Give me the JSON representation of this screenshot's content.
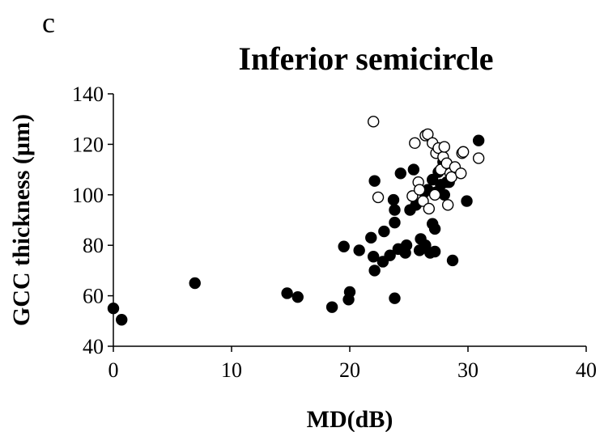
{
  "panel_label": "c",
  "chart_data": {
    "type": "scatter",
    "title": "Inferior semicircle",
    "xlabel": "MD(dB)",
    "ylabel": "GCC thickness (µm)",
    "xlim": [
      0,
      40
    ],
    "ylim": [
      40,
      140
    ],
    "x_ticks": [
      "0",
      "10",
      "20",
      "30",
      "40"
    ],
    "y_ticks": [
      "40",
      "60",
      "80",
      "100",
      "120",
      "140"
    ],
    "grid": false,
    "legend": "none",
    "series": [
      {
        "marker": "filled-circle",
        "color": "#000000",
        "points": [
          [
            0.0,
            55
          ],
          [
            0.7,
            50.5
          ],
          [
            6.9,
            65
          ],
          [
            14.7,
            61
          ],
          [
            15.6,
            59.5
          ],
          [
            18.5,
            55.5
          ],
          [
            19.5,
            79.5
          ],
          [
            19.9,
            58.5
          ],
          [
            20.0,
            61.5
          ],
          [
            20.8,
            78
          ],
          [
            21.8,
            83
          ],
          [
            22.0,
            75.5
          ],
          [
            22.1,
            70
          ],
          [
            22.1,
            105.5
          ],
          [
            22.8,
            73.5
          ],
          [
            22.9,
            85.5
          ],
          [
            23.4,
            76
          ],
          [
            23.7,
            98
          ],
          [
            23.8,
            94
          ],
          [
            23.8,
            89
          ],
          [
            23.8,
            59
          ],
          [
            24.1,
            78.5
          ],
          [
            24.3,
            108.5
          ],
          [
            24.7,
            77
          ],
          [
            24.8,
            80
          ],
          [
            25.1,
            94
          ],
          [
            25.4,
            110
          ],
          [
            25.6,
            96
          ],
          [
            25.9,
            78
          ],
          [
            26.0,
            82.5
          ],
          [
            26.3,
            101
          ],
          [
            26.4,
            80
          ],
          [
            26.6,
            102
          ],
          [
            26.8,
            77
          ],
          [
            27.0,
            88.5
          ],
          [
            27.0,
            106
          ],
          [
            27.2,
            86.5
          ],
          [
            27.2,
            77.5
          ],
          [
            27.3,
            101
          ],
          [
            27.5,
            109
          ],
          [
            27.7,
            104
          ],
          [
            27.9,
            113
          ],
          [
            28.0,
            100
          ],
          [
            28.2,
            105
          ],
          [
            28.4,
            105
          ],
          [
            28.7,
            74
          ],
          [
            29.9,
            97.5
          ],
          [
            30.9,
            121.5
          ]
        ]
      },
      {
        "marker": "open-circle",
        "color": "#000000",
        "points": [
          [
            22.0,
            129
          ],
          [
            22.4,
            99
          ],
          [
            25.3,
            99.5
          ],
          [
            25.5,
            120.5
          ],
          [
            25.8,
            105
          ],
          [
            25.9,
            102
          ],
          [
            26.2,
            97.5
          ],
          [
            26.4,
            123.5
          ],
          [
            26.6,
            124
          ],
          [
            26.7,
            94.5
          ],
          [
            27.0,
            120.5
          ],
          [
            27.2,
            100
          ],
          [
            27.3,
            116.5
          ],
          [
            27.5,
            118.5
          ],
          [
            27.7,
            110
          ],
          [
            27.9,
            115
          ],
          [
            28.0,
            119
          ],
          [
            28.2,
            112.5
          ],
          [
            28.3,
            96
          ],
          [
            28.5,
            108.5
          ],
          [
            28.6,
            107
          ],
          [
            28.9,
            111
          ],
          [
            29.4,
            108.5
          ],
          [
            29.5,
            116.5
          ],
          [
            29.6,
            117
          ],
          [
            30.9,
            114.5
          ]
        ]
      }
    ]
  }
}
